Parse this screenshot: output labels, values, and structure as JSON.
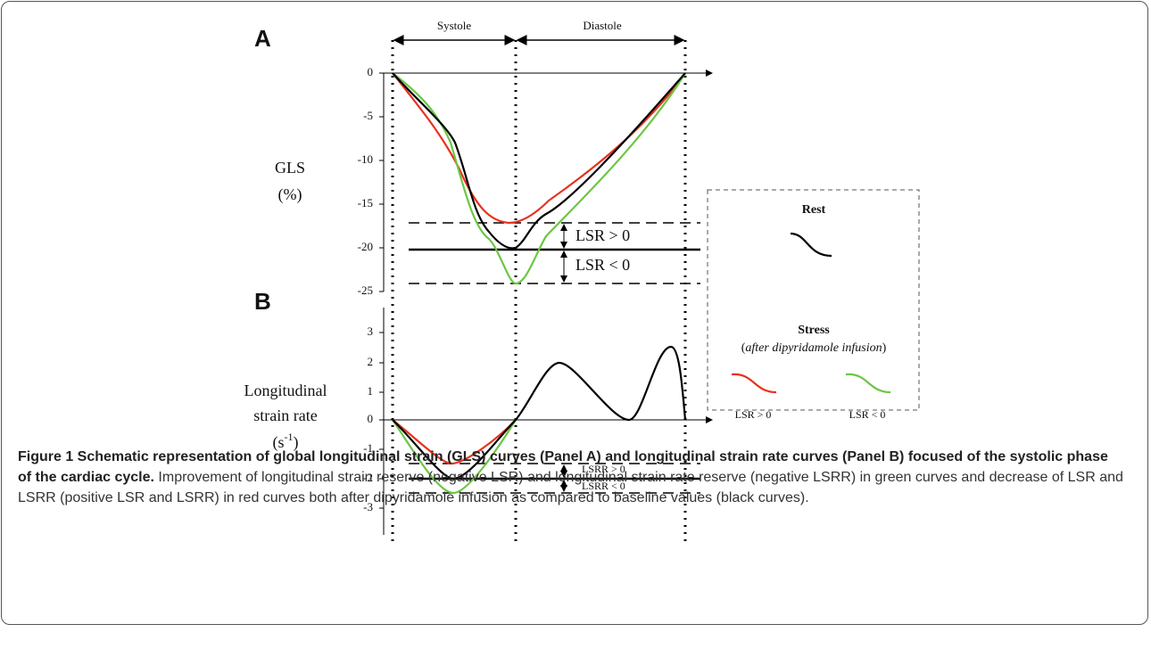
{
  "panel_a": {
    "label": "A",
    "phases": [
      "Systole",
      "Diastole"
    ],
    "y_label": [
      "GLS",
      "(%)"
    ],
    "yticks": [
      "0",
      "-5",
      "-10",
      "-15",
      "-20",
      "-25"
    ],
    "annotations": [
      "LSR > 0",
      "LSR < 0"
    ]
  },
  "panel_b": {
    "label": "B",
    "y_label": [
      "Longitudinal",
      "strain rate"
    ],
    "y_unit": [
      "(s",
      "-1",
      ")"
    ],
    "yticks": [
      "3",
      "2",
      "1",
      "0",
      "-1",
      "-2",
      "-3"
    ],
    "annotations": [
      "LSRR > 0",
      "LSRR < 0"
    ]
  },
  "legend": {
    "rest": "Rest",
    "stress": "Stress",
    "stress_note": [
      "(",
      "after dipyridamole infusion",
      ")"
    ],
    "items": [
      "LSR > 0",
      "LSR < 0"
    ]
  },
  "caption": {
    "title": "Figure 1 Schematic representation of global longitudinal strain (GLS) curves (Panel A) and longitudinal strain rate curves (Panel B) focused of the systolic phase of the cardiac cycle.",
    "text": "Improvement of longitudinal strain reserve (negative LSR) and longitudinal strain rate reserve (negative LSRR) in green curves and decrease of LSR and LSRR (positive LSR and LSRR) in red curves both after dipyridamole infusion as compared to baseline values (black curves)."
  }
}
